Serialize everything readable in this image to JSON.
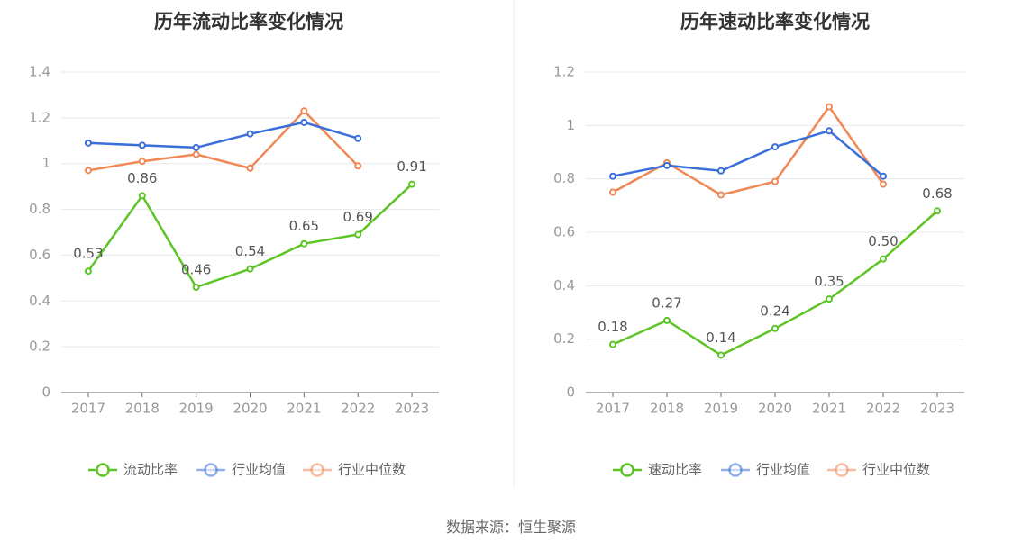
{
  "source_text": "数据来源：恒生聚源",
  "colors": {
    "green": "#5cc424",
    "blue": "#3a6fd9",
    "orange": "#f08855",
    "axis": "#666666",
    "grid": "#e6e8ee",
    "divider": "#eeeeee"
  },
  "chart_data": [
    {
      "type": "line",
      "title": "历年流动比率变化情况",
      "categories": [
        "2017",
        "2018",
        "2019",
        "2020",
        "2021",
        "2022",
        "2023"
      ],
      "ylim": [
        0,
        1.4
      ],
      "yticks": [
        0,
        0.2,
        0.4,
        0.6,
        0.8,
        1,
        1.2,
        1.4
      ],
      "ytick_labels": [
        "0",
        "0.2",
        "0.4",
        "0.6",
        "0.8",
        "1",
        "1.2",
        "1.4"
      ],
      "grid": true,
      "legend_position": "bottom",
      "series": [
        {
          "name": "流动比率",
          "color": "#5cc424",
          "values": [
            0.53,
            0.86,
            0.46,
            0.54,
            0.65,
            0.69,
            0.91
          ],
          "labels": [
            "0.53",
            "0.86",
            "0.46",
            "0.54",
            "0.65",
            "0.69",
            "0.91"
          ]
        },
        {
          "name": "行业均值",
          "color": "#3a6fd9",
          "values": [
            1.09,
            1.08,
            1.07,
            1.13,
            1.18,
            1.11,
            null
          ]
        },
        {
          "name": "行业中位数",
          "color": "#f08855",
          "values": [
            0.97,
            1.01,
            1.04,
            0.98,
            1.23,
            0.99,
            null
          ]
        }
      ]
    },
    {
      "type": "line",
      "title": "历年速动比率变化情况",
      "categories": [
        "2017",
        "2018",
        "2019",
        "2020",
        "2021",
        "2022",
        "2023"
      ],
      "ylim": [
        0,
        1.2
      ],
      "yticks": [
        0,
        0.2,
        0.4,
        0.6,
        0.8,
        1,
        1.2
      ],
      "ytick_labels": [
        "0",
        "0.2",
        "0.4",
        "0.6",
        "0.8",
        "1",
        "1.2"
      ],
      "grid": true,
      "legend_position": "bottom",
      "series": [
        {
          "name": "速动比率",
          "color": "#5cc424",
          "values": [
            0.18,
            0.27,
            0.14,
            0.24,
            0.35,
            0.5,
            0.68
          ],
          "labels": [
            "0.18",
            "0.27",
            "0.14",
            "0.24",
            "0.35",
            "0.50",
            "0.68"
          ]
        },
        {
          "name": "行业均值",
          "color": "#3a6fd9",
          "values": [
            0.81,
            0.85,
            0.83,
            0.92,
            0.98,
            0.81,
            null
          ]
        },
        {
          "name": "行业中位数",
          "color": "#f08855",
          "values": [
            0.75,
            0.86,
            0.74,
            0.79,
            1.07,
            0.78,
            null
          ]
        }
      ]
    }
  ]
}
